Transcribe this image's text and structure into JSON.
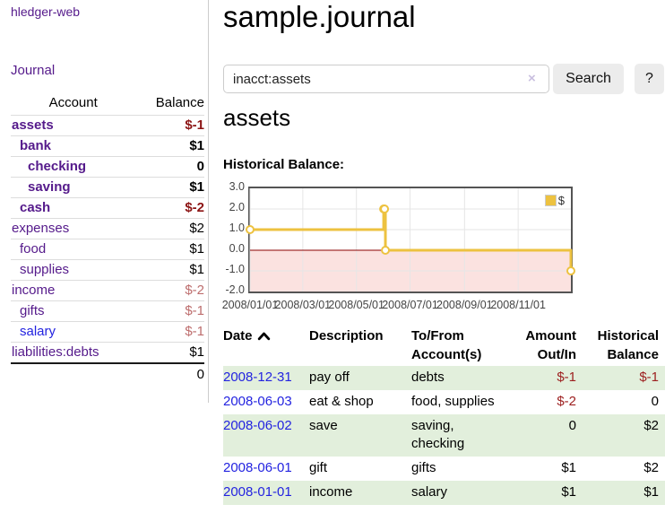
{
  "sidebar": {
    "brand": "hledger-web",
    "journal_label": "Journal",
    "accounts_header": {
      "account": "Account",
      "balance": "Balance"
    },
    "accounts": [
      {
        "name": "assets",
        "indent": 1,
        "bold": true,
        "blue": false,
        "balance": "$-1",
        "balance_style": "neg-strong"
      },
      {
        "name": "bank",
        "indent": 2,
        "bold": true,
        "blue": false,
        "balance": "$1",
        "balance_style": "pos"
      },
      {
        "name": "checking",
        "indent": 3,
        "bold": true,
        "blue": false,
        "balance": "0",
        "balance_style": "pos"
      },
      {
        "name": "saving",
        "indent": 3,
        "bold": true,
        "blue": false,
        "balance": "$1",
        "balance_style": "pos"
      },
      {
        "name": "cash",
        "indent": 2,
        "bold": true,
        "blue": false,
        "balance": "$-2",
        "balance_style": "neg-strong"
      },
      {
        "name": "expenses",
        "indent": 1,
        "bold": false,
        "blue": false,
        "balance": "$2",
        "balance_style": "pos"
      },
      {
        "name": "food",
        "indent": 2,
        "bold": false,
        "blue": false,
        "balance": "$1",
        "balance_style": "pos"
      },
      {
        "name": "supplies",
        "indent": 2,
        "bold": false,
        "blue": false,
        "balance": "$1",
        "balance_style": "pos"
      },
      {
        "name": "income",
        "indent": 1,
        "bold": false,
        "blue": false,
        "balance": "$-2",
        "balance_style": "neg-muted"
      },
      {
        "name": "gifts",
        "indent": 2,
        "bold": false,
        "blue": false,
        "balance": "$-1",
        "balance_style": "neg-muted"
      },
      {
        "name": "salary",
        "indent": 2,
        "bold": false,
        "blue": true,
        "balance": "$-1",
        "balance_style": "neg-muted"
      },
      {
        "name": "liabilities:debts",
        "indent": 1,
        "bold": false,
        "blue": false,
        "balance": "$1",
        "balance_style": "pos"
      }
    ],
    "accounts_total": "0"
  },
  "main": {
    "title": "sample.journal",
    "search": {
      "value": "inacct:assets",
      "clear_icon": "×",
      "button_label": "Search",
      "help_label": "?"
    },
    "register_title": "assets"
  },
  "chart_data": {
    "type": "line",
    "title": "Historical Balance:",
    "step": true,
    "series": [
      {
        "name": "$",
        "color": "#edc240",
        "points": [
          [
            "2008-01-01",
            1
          ],
          [
            "2008-06-01",
            2
          ],
          [
            "2008-06-02",
            2
          ],
          [
            "2008-06-03",
            0
          ],
          [
            "2008-12-31",
            -1
          ]
        ]
      }
    ],
    "xrange": [
      "2008-01-01",
      "2008-12-31"
    ],
    "ylim": [
      -2,
      3
    ],
    "yticks": [
      3.0,
      2.0,
      1.0,
      0.0,
      -1.0,
      -2.0
    ],
    "xticks": [
      "2008/01/01",
      "2008/03/01",
      "2008/05/01",
      "2008/07/01",
      "2008/09/01",
      "2008/11/01"
    ],
    "grid": true,
    "gridline_color": "#e6e6e6",
    "negative_fill": "#fbe2e0",
    "zero_line_color": "#8b0000",
    "legend_position": "top-right",
    "marker": {
      "shape": "circle",
      "fill": "#ffffff",
      "radius": 4
    }
  },
  "register": {
    "headers": {
      "date": "Date",
      "description": "Description",
      "accounts": "To/From Account(s)",
      "amount": "Amount Out/In",
      "balance": "Historical Balance"
    },
    "sort": {
      "column": "date",
      "direction": "ascending"
    },
    "rows": [
      {
        "date": "2008-12-31",
        "description": "pay off",
        "accounts": "debts",
        "amount": "$-1",
        "amount_neg": true,
        "balance": "$-1",
        "balance_neg": true
      },
      {
        "date": "2008-06-03",
        "description": "eat & shop",
        "accounts": "food, supplies",
        "amount": "$-2",
        "amount_neg": true,
        "balance": "0",
        "balance_neg": false
      },
      {
        "date": "2008-06-02",
        "description": "save",
        "accounts": "saving, checking",
        "amount": "0",
        "amount_neg": false,
        "balance": "$2",
        "balance_neg": false
      },
      {
        "date": "2008-06-01",
        "description": "gift",
        "accounts": "gifts",
        "amount": "$1",
        "amount_neg": false,
        "balance": "$2",
        "balance_neg": false
      },
      {
        "date": "2008-01-01",
        "description": "income",
        "accounts": "salary",
        "amount": "$1",
        "amount_neg": false,
        "balance": "$1",
        "balance_neg": false
      }
    ]
  },
  "colors": {
    "link_purple": "#551a8b",
    "link_blue": "#2323e0",
    "negative_strong": "#8c1414",
    "negative_muted": "#bd6d6d",
    "register_negative": "#9d2020",
    "row_stripe_green": "#e2efdc",
    "series_gold": "#edc240",
    "chart_border": "#545454",
    "button_gray": "#ececec"
  }
}
